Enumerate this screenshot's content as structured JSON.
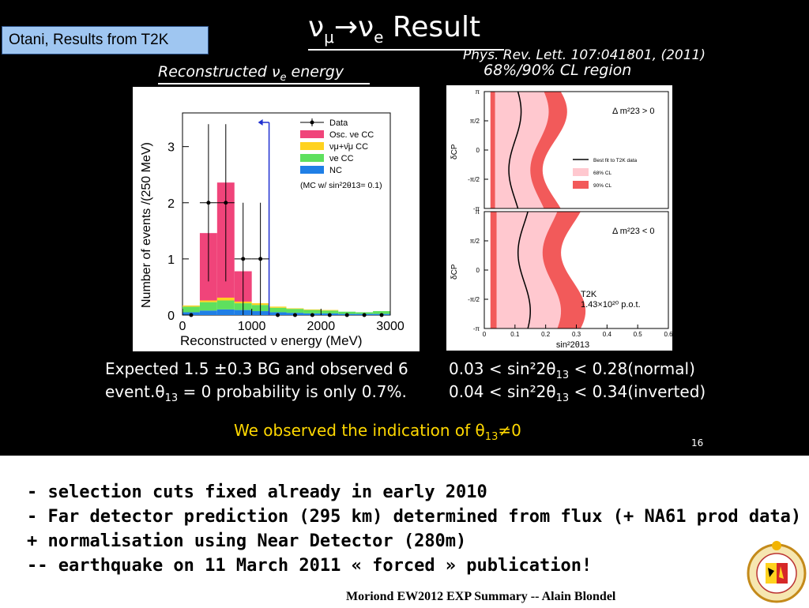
{
  "header": {
    "tag": "Otani, Results from T2K",
    "title_main": "ν",
    "title_sub1": "μ",
    "title_arrow": "→ν",
    "title_sub2": "e",
    "title_rest": " Result",
    "citation": "Phys. Rev. Lett. 107:041801, (2011)",
    "cl_region": "68%/90% CL region",
    "subhead_pre": "Reconstructed ν",
    "subhead_sub": "e",
    "subhead_post": " energy"
  },
  "chart_data": [
    {
      "type": "bar",
      "title": "",
      "xlabel": "Reconstructed ν energy (MeV)",
      "ylabel": "Number of events /(250 MeV)",
      "xlim": [
        0,
        3000
      ],
      "ylim": [
        0,
        3.6
      ],
      "x_ticks": [
        "0",
        "1000",
        "2000",
        "3000"
      ],
      "y_ticks": [
        "0",
        "1",
        "2",
        "3"
      ],
      "bin_width": 250,
      "bin_starts": [
        0,
        250,
        500,
        750,
        1000,
        1250,
        1500,
        1750,
        2000,
        2250,
        2500,
        2750
      ],
      "series": [
        {
          "name": "NC",
          "color": "#1f7fe6",
          "values": [
            0.05,
            0.08,
            0.1,
            0.09,
            0.07,
            0.05,
            0.04,
            0.03,
            0.03,
            0.02,
            0.02,
            0.02
          ]
        },
        {
          "name": "νe CC",
          "color": "#5ee05e",
          "values": [
            0.1,
            0.15,
            0.16,
            0.12,
            0.11,
            0.08,
            0.07,
            0.06,
            0.05,
            0.04,
            0.03,
            0.05
          ]
        },
        {
          "name": "νμ+ν̄μ CC",
          "color": "#ffd21f",
          "values": [
            0.02,
            0.03,
            0.05,
            0.03,
            0.03,
            0.02,
            0.01,
            0.01,
            0.01,
            0.0,
            0.0,
            0.0
          ]
        },
        {
          "name": "Osc. νe CC",
          "color": "#f0447a",
          "values": [
            0.0,
            1.2,
            2.05,
            0.54,
            0.0,
            0.0,
            0.0,
            0.0,
            0.0,
            0.0,
            0.0,
            0.0
          ]
        }
      ],
      "data_points": {
        "name": "Data",
        "x": [
          125,
          375,
          625,
          875,
          1125,
          1375,
          1625,
          1875,
          2125,
          2375,
          2625,
          2875
        ],
        "y": [
          0,
          2,
          2,
          1,
          1,
          0,
          0,
          0,
          0,
          0,
          0,
          0
        ],
        "yerr_hi": [
          0,
          1.4,
          1.4,
          1.0,
          1.0,
          0,
          0,
          0,
          0,
          0,
          0,
          0
        ],
        "yerr_lo": [
          0,
          1.4,
          1.4,
          1.0,
          1.0,
          0,
          0,
          0,
          0,
          0,
          0,
          0
        ]
      },
      "cut_line_x": 1250,
      "legend": [
        "Data",
        "Osc. νe CC",
        "νμ+ν̄μ CC",
        "νe CC",
        "NC"
      ],
      "legend_note": "(MC w/ sin²2θ13= 0.1)",
      "legend_position": "top-right"
    },
    {
      "type": "area",
      "panels": [
        {
          "label": "Δ m²23 > 0",
          "best_fit_label": "Best fit to T2K data",
          "cl68_label": "68% CL",
          "cl90_label": "90% CL"
        },
        {
          "label": "Δ m²23 < 0",
          "annotation_1": "T2K",
          "annotation_2": "1.43×10²⁰ p.o.t."
        }
      ],
      "xlabel": "sin²2θ13",
      "ylabel": "δCP",
      "xlim": [
        0,
        0.6
      ],
      "x_ticks": [
        "0",
        "0.1",
        "0.2",
        "0.3",
        "0.4",
        "0.5",
        "0.6"
      ],
      "y_ticks": [
        "π",
        "π/2",
        "0",
        "-π/2",
        "-π"
      ]
    }
  ],
  "stats": {
    "left_line1": "Expected 1.5 ±0.3 BG and observed 6",
    "left_line2_pre": "event.θ",
    "left_line2_sub": "13",
    "left_line2_post": " = 0 probability is only 0.7%.",
    "right_line1_pre": "0.03 < sin²2θ",
    "right_line1_sub": "13",
    "right_line1_post": " < 0.28(normal)",
    "right_line2_pre": "0.04 < sin²2θ",
    "right_line2_sub": "13",
    "right_line2_post": " < 0.34(inverted)",
    "conclusion_pre": "We observed the indication of θ",
    "conclusion_sub": "13",
    "conclusion_post": "≠0",
    "page_number": "16"
  },
  "bullets": [
    "- selection cuts fixed already in early 2010",
    "- Far detector prediction (295 km) determined from flux (+ NA61 prod data)",
    "+ normalisation using Near Detector (280m)",
    "-- earthquake on 11 March 2011 « forced » publication!"
  ],
  "footer": "Moriond EW2012 EXP Summary -- Alain Blondel",
  "colors": {
    "tag_bg": "#9fc6f1",
    "conclusion": "#ffd800",
    "cl68": "#ffc8cf",
    "cl90": "#f25a5a"
  },
  "icons": [
    "university-seal-icon"
  ]
}
